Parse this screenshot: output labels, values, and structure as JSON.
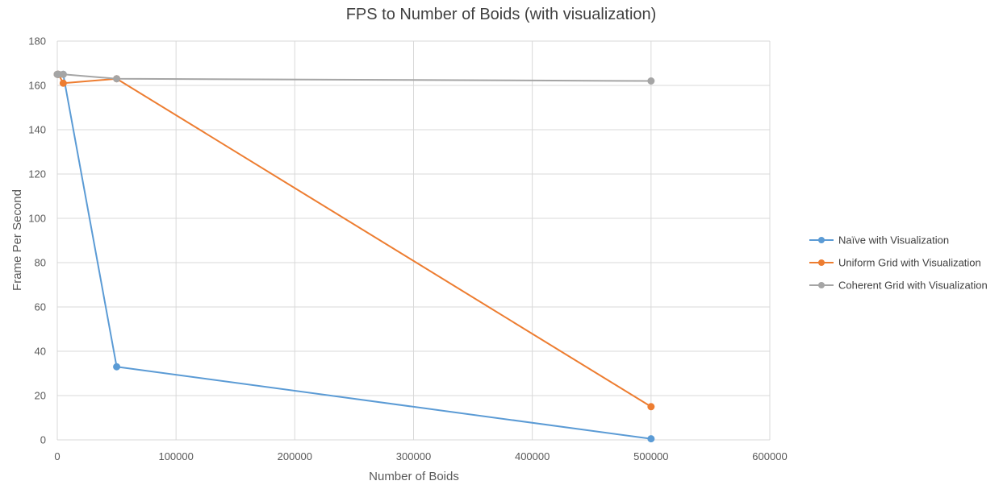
{
  "chart_data": {
    "type": "line",
    "title": "FPS to Number of Boids (with visualization)",
    "xlabel": "Number of Boids",
    "ylabel": "Frame Per Second",
    "xlim": [
      0,
      600000
    ],
    "ylim": [
      0,
      180
    ],
    "xticks": [
      0,
      100000,
      200000,
      300000,
      400000,
      500000,
      600000
    ],
    "yticks": [
      0,
      20,
      40,
      60,
      80,
      100,
      120,
      140,
      160,
      180
    ],
    "grid": true,
    "legend_position": "right",
    "series": [
      {
        "name": "Naïve with Visualization",
        "color": "#5b9bd5",
        "points": [
          [
            0,
            165
          ],
          [
            1000,
            165
          ],
          [
            5000,
            165
          ],
          [
            50000,
            33
          ],
          [
            500000,
            0.5
          ]
        ]
      },
      {
        "name": "Uniform Grid with Visualization",
        "color": "#ed7d31",
        "points": [
          [
            0,
            165
          ],
          [
            1000,
            165
          ],
          [
            5000,
            161
          ],
          [
            50000,
            163
          ],
          [
            500000,
            15
          ]
        ]
      },
      {
        "name": "Coherent Grid with Visualization",
        "color": "#a5a5a5",
        "points": [
          [
            0,
            165
          ],
          [
            1000,
            165
          ],
          [
            5000,
            165
          ],
          [
            50000,
            163
          ],
          [
            500000,
            162
          ]
        ]
      }
    ]
  }
}
